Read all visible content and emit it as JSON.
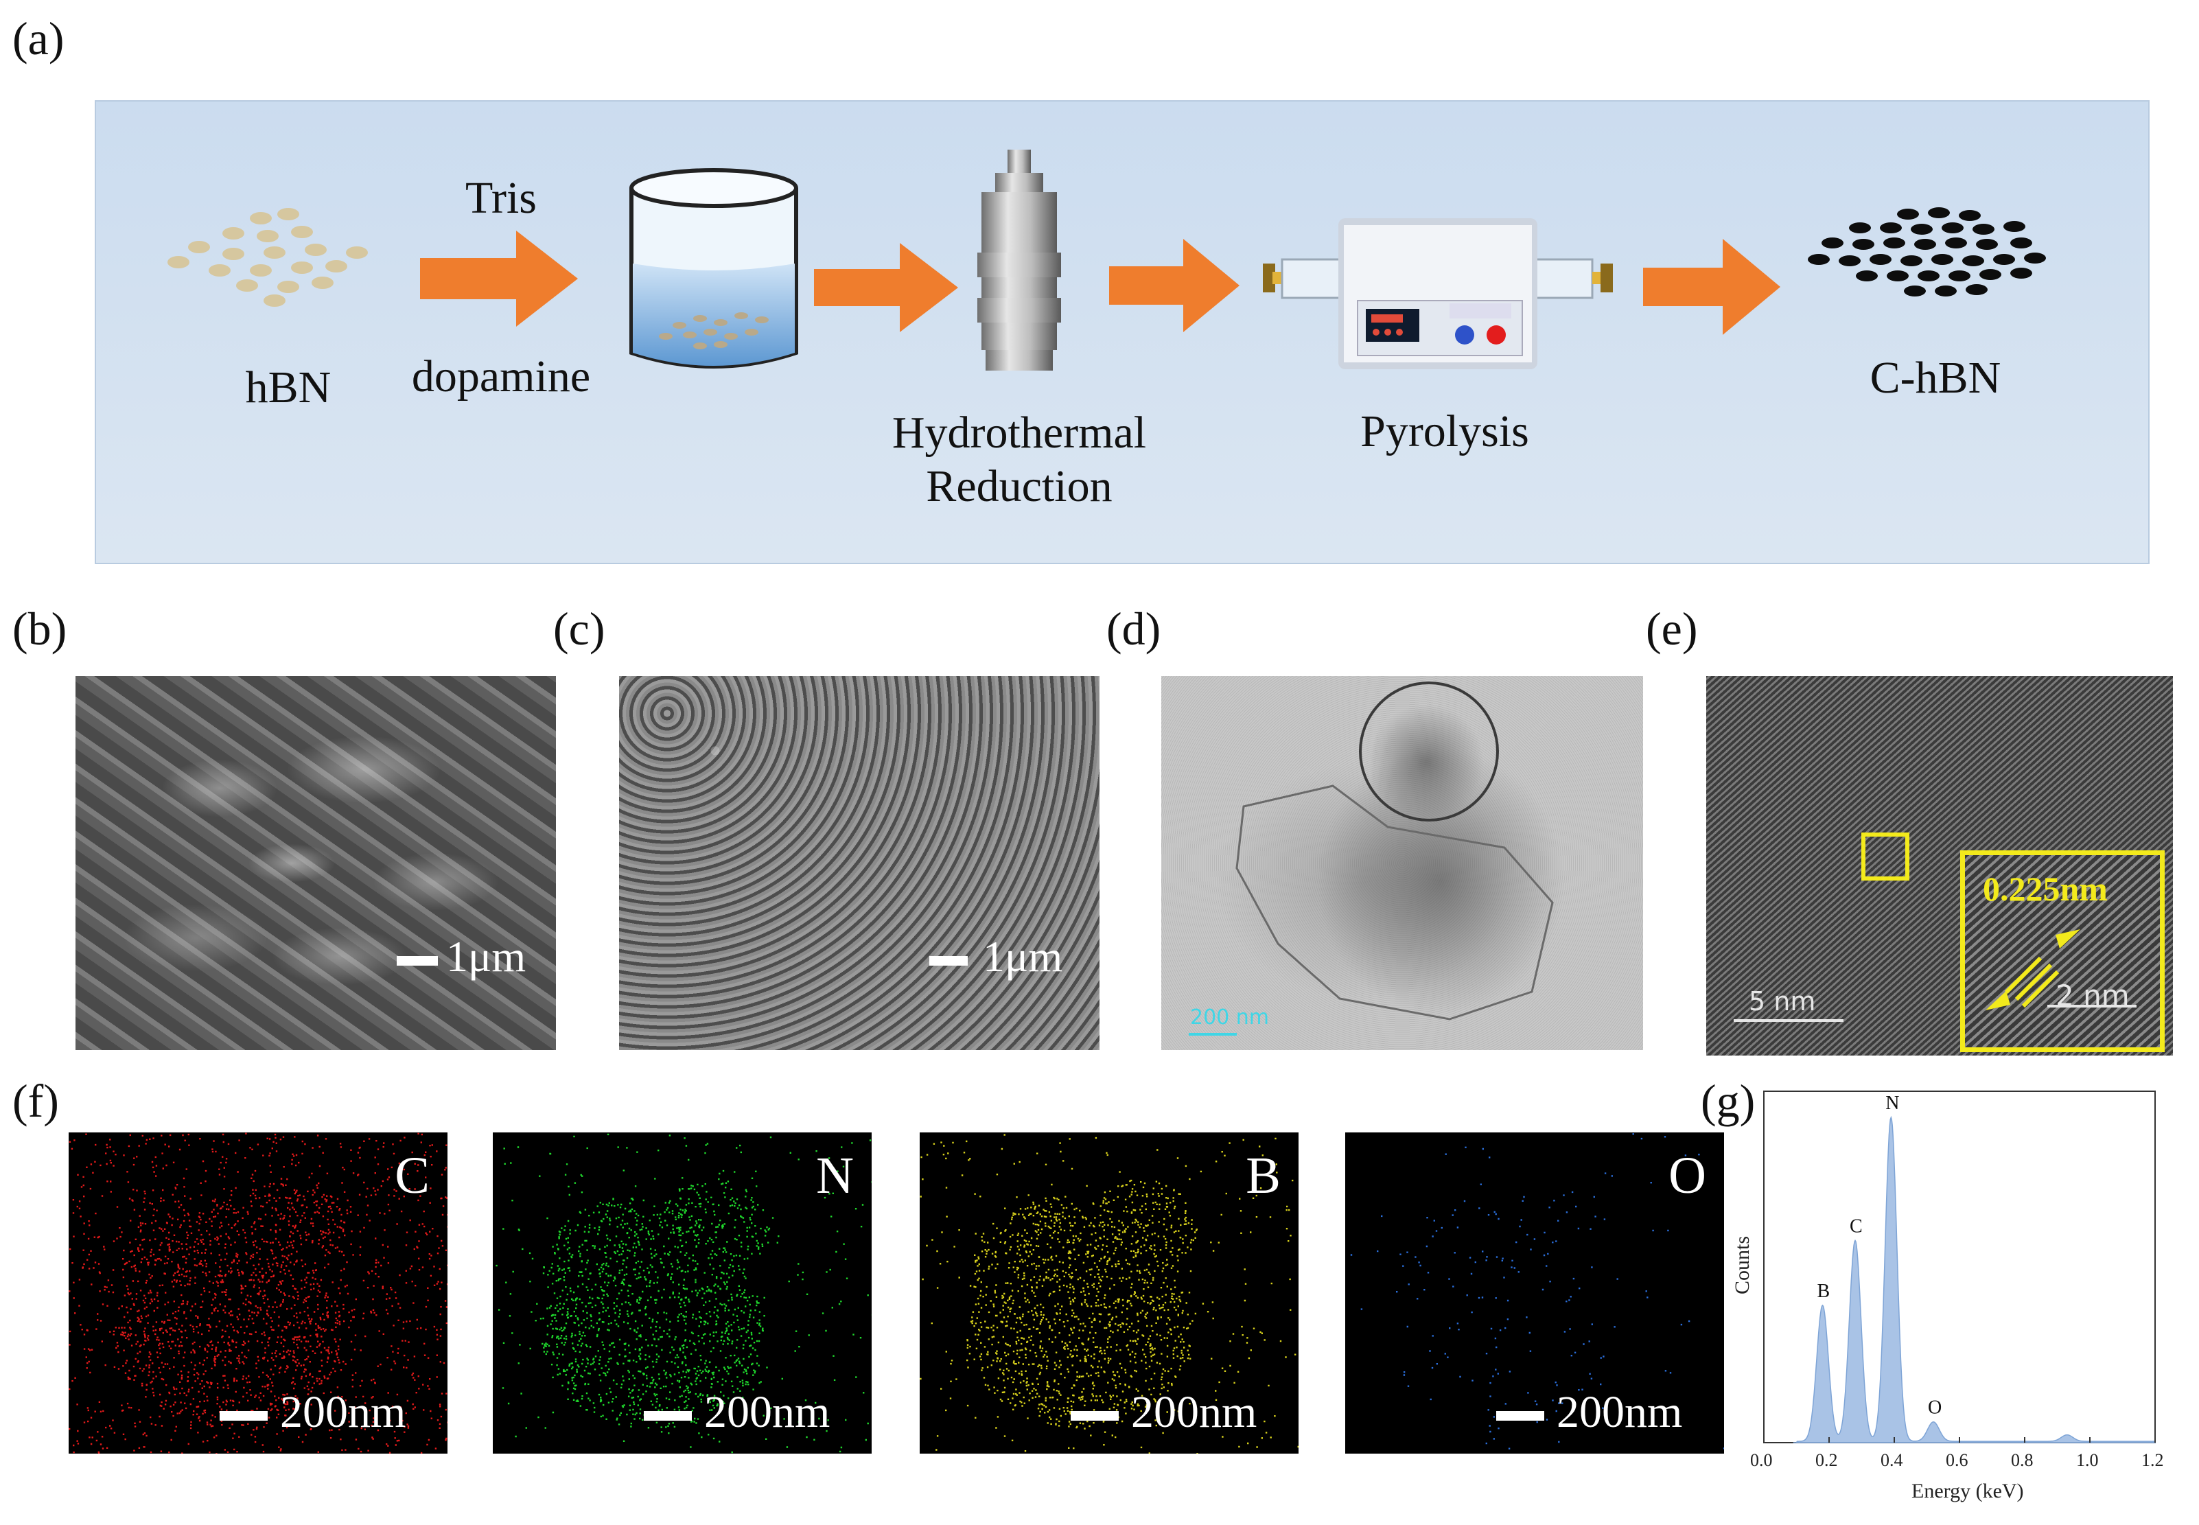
{
  "labels": {
    "a": "(a)",
    "b": "(b)",
    "c": "(c)",
    "d": "(d)",
    "e": "(e)",
    "f": "(f)",
    "g": "(g)"
  },
  "schematic": {
    "hbn": "hBN",
    "reagent_top": "Tris",
    "reagent_bottom": "dopamine",
    "hydrothermal_line1": "Hydrothermal",
    "hydrothermal_line2": "Reduction",
    "pyrolysis": "Pyrolysis",
    "product": "C-hBN",
    "colors": {
      "arrow": "#ef7d2d",
      "flake": "#d6c79f",
      "product": "#0d0d0d",
      "liquid": "#6fa5d8"
    }
  },
  "sem_b": {
    "scale": "1μm"
  },
  "sem_c": {
    "scale": "1μm"
  },
  "tem_d": {
    "scale": "200 nm"
  },
  "hrtem_e": {
    "scale": "5 nm",
    "inset_scale": "2 nm",
    "d_spacing": "0.225nm"
  },
  "maps": [
    {
      "element": "C",
      "scale": "200nm",
      "color": "#e31a1a"
    },
    {
      "element": "N",
      "scale": "200nm",
      "color": "#1fd72c"
    },
    {
      "element": "B",
      "scale": "200nm",
      "color": "#d9d21c"
    },
    {
      "element": "O",
      "scale": "200nm",
      "color": "#2a6dd9"
    }
  ],
  "chart_data": {
    "type": "area",
    "xlabel": "Energy (keV)",
    "ylabel": "Counts",
    "xlim": [
      0.0,
      1.2
    ],
    "xticks": [
      "0.0",
      "0.2",
      "0.4",
      "0.6",
      "0.8",
      "1.0",
      "1.2"
    ],
    "peaks": [
      {
        "label": "B",
        "x": 0.18,
        "height": 0.42
      },
      {
        "label": "C",
        "x": 0.28,
        "height": 0.62
      },
      {
        "label": "N",
        "x": 0.39,
        "height": 1.0
      },
      {
        "label": "O",
        "x": 0.52,
        "height": 0.06
      },
      {
        "label": "",
        "x": 0.93,
        "height": 0.02
      }
    ],
    "fill_color": "#a9c3e6"
  }
}
